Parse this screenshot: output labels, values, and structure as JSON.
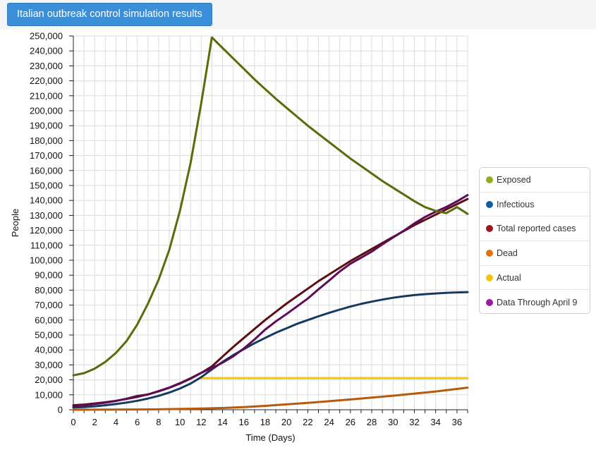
{
  "header": {
    "title_button": "Italian outbreak control simulation results"
  },
  "chart_data": {
    "type": "line",
    "xlabel": "Time (Days)",
    "ylabel": "People",
    "xlim": [
      0,
      37
    ],
    "ylim": [
      0,
      250000
    ],
    "x_ticks": [
      0,
      2,
      4,
      6,
      8,
      10,
      12,
      14,
      16,
      18,
      20,
      22,
      24,
      26,
      28,
      30,
      32,
      34,
      36
    ],
    "y_ticks": [
      0,
      10000,
      20000,
      30000,
      40000,
      50000,
      60000,
      70000,
      80000,
      90000,
      100000,
      110000,
      120000,
      130000,
      140000,
      150000,
      160000,
      170000,
      180000,
      190000,
      200000,
      210000,
      220000,
      230000,
      240000,
      250000
    ],
    "y_tick_labels": [
      "0",
      "10,000",
      "20,000",
      "30,000",
      "40,000",
      "50,000",
      "60,000",
      "70,000",
      "80,000",
      "90,000",
      "100,000",
      "110,000",
      "120,000",
      "130,000",
      "140,000",
      "150,000",
      "160,000",
      "170,000",
      "180,000",
      "190,000",
      "200,000",
      "210,000",
      "220,000",
      "230,000",
      "240,000",
      "250,000"
    ],
    "grid": true,
    "legend_position": "right",
    "series": [
      {
        "name": "Exposed",
        "legend_color": "#8fae1b",
        "line_color": "#5a6b0a",
        "x": [
          0,
          1,
          2,
          3,
          4,
          5,
          6,
          7,
          8,
          9,
          10,
          11,
          12,
          13,
          14,
          15,
          16,
          17,
          18,
          19,
          20,
          21,
          22,
          23,
          24,
          25,
          26,
          27,
          28,
          29,
          30,
          31,
          32,
          33,
          34,
          35,
          36,
          37
        ],
        "y": [
          23000,
          24500,
          27500,
          32000,
          38000,
          46000,
          57000,
          71000,
          87000,
          107000,
          133000,
          165000,
          205000,
          249000,
          242000,
          235000,
          228000,
          221000,
          214500,
          208000,
          202000,
          196000,
          190000,
          184500,
          179000,
          173500,
          168000,
          163000,
          158000,
          153000,
          148500,
          144000,
          139500,
          135500,
          133000,
          131500,
          135500,
          131000
        ]
      },
      {
        "name": "Infectious",
        "legend_color": "#0f5ca6",
        "line_color": "#163a5f",
        "x": [
          0,
          1,
          2,
          3,
          4,
          5,
          6,
          7,
          8,
          9,
          10,
          11,
          12,
          13,
          14,
          15,
          16,
          17,
          18,
          19,
          20,
          21,
          22,
          23,
          24,
          25,
          26,
          27,
          28,
          29,
          30,
          31,
          32,
          33,
          34,
          35,
          36,
          37
        ],
        "y": [
          1500,
          1800,
          2300,
          3000,
          3800,
          4800,
          6000,
          7500,
          9300,
          11500,
          14200,
          17500,
          21800,
          27000,
          32000,
          36500,
          40500,
          44500,
          48000,
          51500,
          54500,
          57500,
          60000,
          62500,
          64800,
          67000,
          69000,
          70800,
          72300,
          73700,
          74900,
          75900,
          76700,
          77300,
          77800,
          78200,
          78500,
          78700
        ]
      },
      {
        "name": "Total reported cases",
        "legend_color": "#a3141b",
        "line_color": "#5b0f14",
        "x": [
          0,
          1,
          2,
          3,
          4,
          5,
          6,
          7,
          8,
          9,
          10,
          11,
          12,
          13,
          14,
          15,
          16,
          17,
          18,
          19,
          20,
          21,
          22,
          23,
          24,
          25,
          26,
          27,
          28,
          29,
          30,
          31,
          32,
          33,
          34,
          35,
          36,
          37
        ],
        "y": [
          3000,
          3500,
          4200,
          5000,
          6000,
          7200,
          8600,
          10300,
          12300,
          14700,
          17500,
          20800,
          24600,
          29000,
          35500,
          42000,
          48000,
          54000,
          60000,
          65500,
          71000,
          76000,
          81000,
          86000,
          90500,
          95000,
          99500,
          103500,
          107500,
          111500,
          115500,
          119500,
          123500,
          127000,
          130500,
          134000,
          137500,
          141000
        ]
      },
      {
        "name": "Dead",
        "legend_color": "#e0730a",
        "line_color": "#b85a0c",
        "x": [
          0,
          2,
          4,
          6,
          8,
          10,
          12,
          14,
          16,
          18,
          20,
          22,
          24,
          26,
          28,
          30,
          32,
          34,
          36,
          37
        ],
        "y": [
          0,
          50,
          100,
          200,
          300,
          500,
          800,
          1200,
          1800,
          2600,
          3600,
          4600,
          5700,
          6900,
          8100,
          9400,
          10800,
          12200,
          13900,
          14800
        ]
      },
      {
        "name": "Actual",
        "legend_color": "#f1c40f",
        "line_color": "#f1c40f",
        "x": [
          12,
          14,
          16,
          18,
          20,
          22,
          24,
          26,
          28,
          30,
          32,
          34,
          36,
          37
        ],
        "y": [
          21157,
          21157,
          21157,
          21157,
          21157,
          21157,
          21157,
          21157,
          21157,
          21157,
          21157,
          21157,
          21157,
          21157
        ]
      },
      {
        "name": "Data Through April 9",
        "legend_color": "#9b1aa0",
        "line_color": "#5e0c55",
        "x": [
          0,
          1,
          2,
          3,
          4,
          5,
          6,
          7,
          8,
          9,
          10,
          11,
          12,
          13,
          14,
          15,
          16,
          17,
          18,
          19,
          20,
          21,
          22,
          23,
          24,
          25,
          26,
          27,
          28,
          29,
          30,
          31,
          32,
          33,
          34,
          35,
          36,
          37
        ],
        "y": [
          2000,
          3000,
          3800,
          4700,
          5900,
          7400,
          9200,
          10200,
          12500,
          14800,
          17800,
          21100,
          24700,
          27900,
          31500,
          35700,
          41000,
          47000,
          53600,
          59100,
          64000,
          69200,
          74400,
          80500,
          86400,
          92500,
          97700,
          101700,
          105800,
          110600,
          115200,
          119700,
          124600,
          128900,
          132500,
          135600,
          139400,
          143600
        ]
      }
    ]
  }
}
